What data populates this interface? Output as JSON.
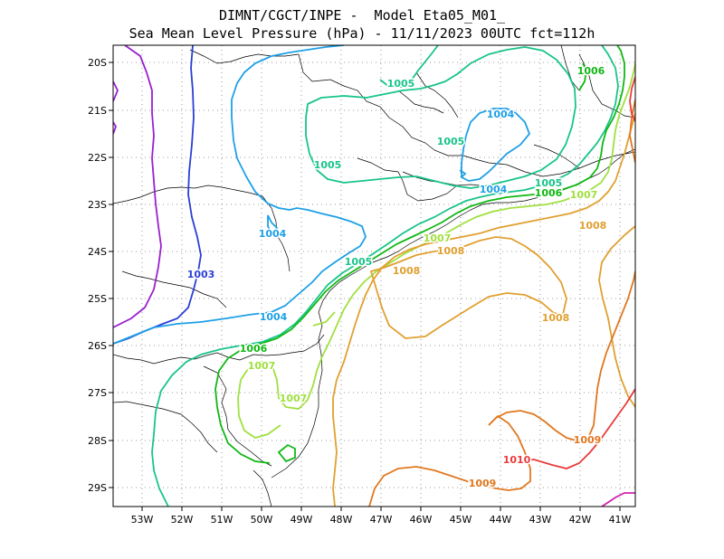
{
  "title": {
    "line1": "DIMNT/CGCT/INPE -  Model Eta05_M01_",
    "line2": "Sea Mean Level Pressure (hPa) - 11/11/2023 00UTC fct=112h"
  },
  "axes": {
    "lat_labels": [
      "20S",
      "21S",
      "22S",
      "23S",
      "24S",
      "25S",
      "26S",
      "27S",
      "28S",
      "29S"
    ],
    "lon_labels": [
      "53W",
      "52W",
      "51W",
      "50W",
      "49W",
      "48W",
      "47W",
      "46W",
      "45W",
      "44W",
      "43W",
      "42W",
      "41W"
    ]
  },
  "colors": {
    "c1003": "#2a3fd6",
    "c1004": "#1ea0e6",
    "c1005": "#18c48a",
    "c1006": "#10b814",
    "c1007": "#a0e040",
    "c1008": "#e0a030",
    "c1009": "#e07820",
    "c1010": "#e83c3c",
    "c_purple": "#9a20d0",
    "c_magenta": "#d020b0",
    "coast": "#000000"
  },
  "contour_labels": {
    "l1003": "1003",
    "l1004_a": "1004",
    "l1004_b": "1004",
    "l1004_c": "1004",
    "l1004_d": "1004",
    "l1005_a": "1005",
    "l1005_b": "1005",
    "l1005_c": "1005",
    "l1005_d": "1005",
    "l1005_e": "1005",
    "l1006_a": "1006",
    "l1006_b": "1006",
    "l1006_c": "1006",
    "l1007_a": "1007",
    "l1007_b": "1007",
    "l1007_c": "1007",
    "l1007_d": "1007",
    "l1008_a": "1008",
    "l1008_b": "1008",
    "l1008_c": "1008",
    "l1008_d": "1008",
    "l1009_a": "1009",
    "l1009_b": "1009",
    "l1010": "1010"
  }
}
